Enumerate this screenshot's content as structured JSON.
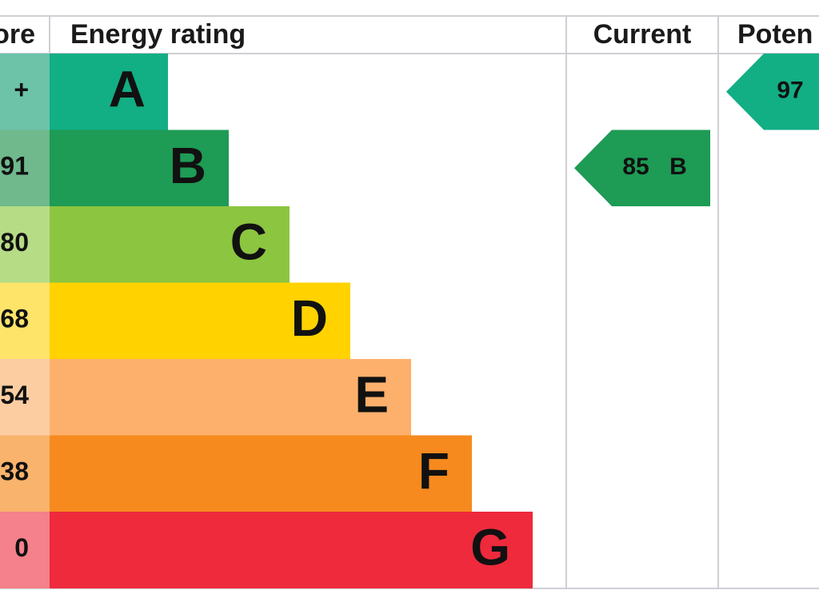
{
  "header": {
    "score": "ore",
    "rating": "Energy rating",
    "current": "Current",
    "potential": "Poten"
  },
  "bands": [
    {
      "score": "+",
      "letter": "A",
      "color": "#12ae84",
      "tint": "#6cc3a8"
    },
    {
      "score": "91",
      "letter": "B",
      "color": "#1e9b55",
      "tint": "#6fb98d"
    },
    {
      "score": "80",
      "letter": "C",
      "color": "#8cc540",
      "tint": "#b6dc86"
    },
    {
      "score": "68",
      "letter": "D",
      "color": "#ffd200",
      "tint": "#ffe46a"
    },
    {
      "score": "54",
      "letter": "E",
      "color": "#fcb06c",
      "tint": "#fdcda2"
    },
    {
      "score": "38",
      "letter": "F",
      "color": "#f68a1e",
      "tint": "#f9b36c"
    },
    {
      "score": "0",
      "letter": "G",
      "color": "#ee2a3c",
      "tint": "#f4818b"
    }
  ],
  "current": {
    "score": "85",
    "letter": "B"
  },
  "potential": {
    "score": "97"
  }
}
